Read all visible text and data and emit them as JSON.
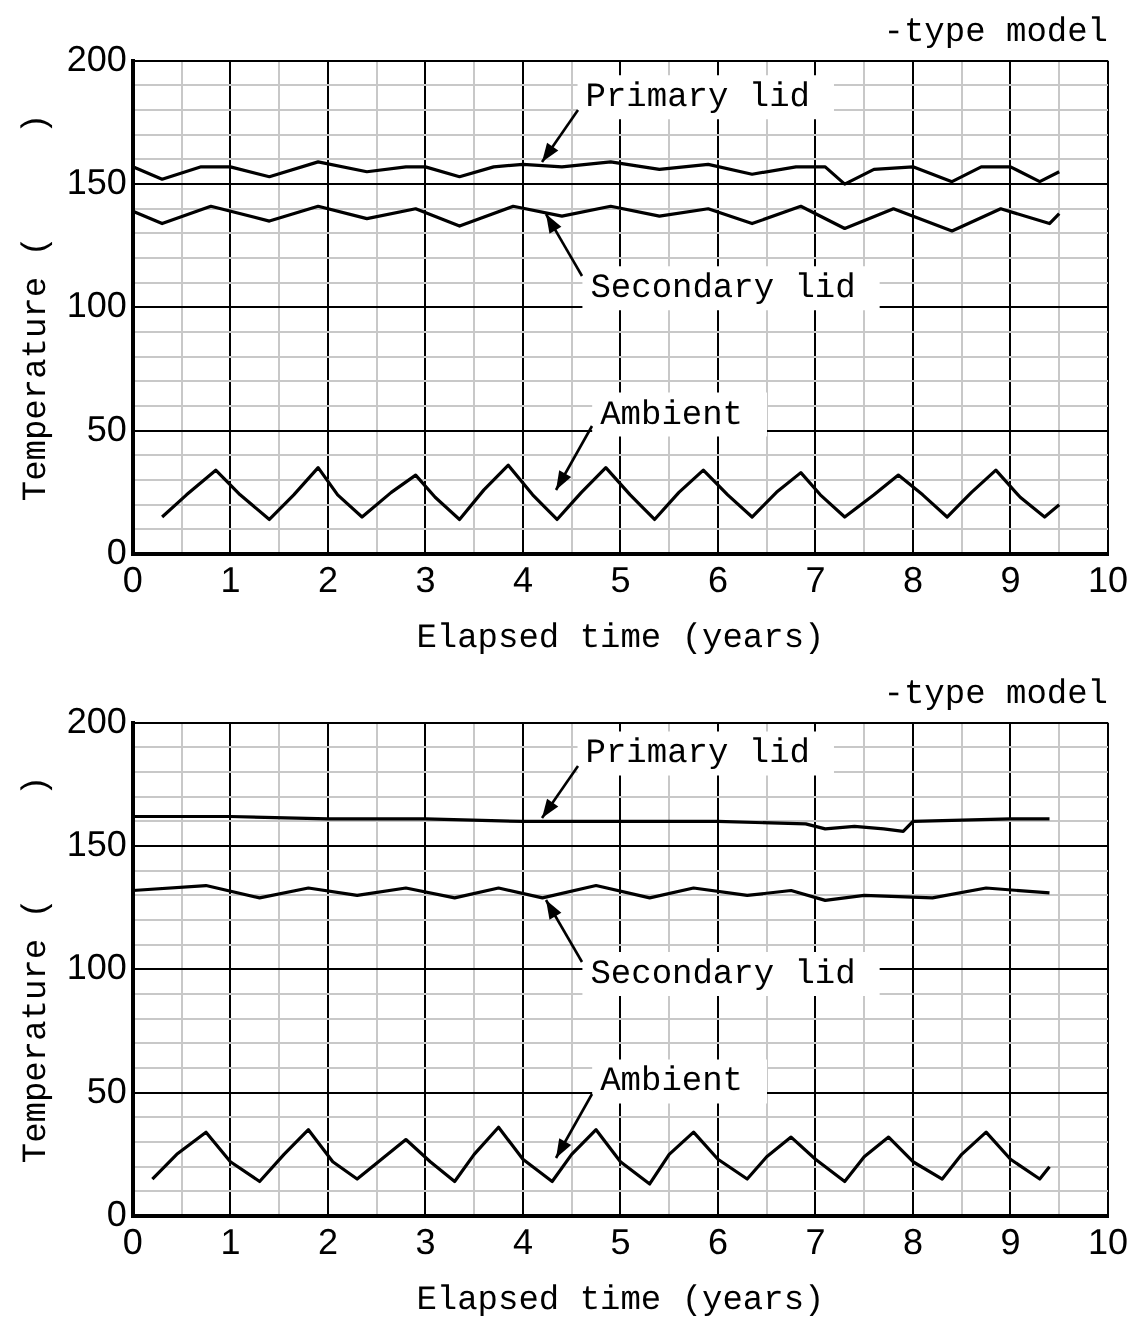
{
  "chart_data": [
    {
      "type": "line",
      "title": "-type model",
      "xlabel": "Elapsed time (years)",
      "ylabel": "Temperature (     )",
      "xlim": [
        0,
        10
      ],
      "ylim": [
        0,
        200
      ],
      "xticks": [
        0,
        {
          "value": 0.5,
          "label": null
        },
        1,
        {
          "value": 1.5,
          "label": null
        },
        2,
        {
          "value": 2.5,
          "label": null
        },
        3,
        {
          "value": 3.5,
          "label": null
        },
        4,
        {
          "value": 4.5,
          "label": null
        },
        5,
        {
          "value": 5.5,
          "label": null
        },
        6,
        {
          "value": 6.5,
          "label": null
        },
        7,
        {
          "value": 7.5,
          "label": null
        },
        8,
        {
          "value": 8.5,
          "label": null
        },
        9,
        {
          "value": 9.5,
          "label": null
        },
        10
      ],
      "yticks": [
        0,
        {
          "value": 10,
          "label": null
        },
        {
          "value": 20,
          "label": null
        },
        {
          "value": 30,
          "label": null
        },
        {
          "value": 40,
          "label": null
        },
        50,
        {
          "value": 60,
          "label": null
        },
        {
          "value": 70,
          "label": null
        },
        {
          "value": 80,
          "label": null
        },
        {
          "value": 90,
          "label": null
        },
        100,
        {
          "value": 110,
          "label": null
        },
        {
          "value": 120,
          "label": null
        },
        {
          "value": 130,
          "label": null
        },
        {
          "value": 140,
          "label": null
        },
        150,
        {
          "value": 160,
          "label": null
        },
        {
          "value": 170,
          "label": null
        },
        {
          "value": 180,
          "label": null
        },
        {
          "value": 190,
          "label": null
        },
        200
      ],
      "grid": true,
      "series": [
        {
          "name": "Primary lid",
          "color": "#000000",
          "x": [
            0,
            0.3,
            0.7,
            1.0,
            1.4,
            1.9,
            2.4,
            2.8,
            3.0,
            3.35,
            3.7,
            4.0,
            4.4,
            4.9,
            5.4,
            5.9,
            6.35,
            6.8,
            7.1,
            7.3,
            7.6,
            8.0,
            8.4,
            8.7,
            9.0,
            9.3,
            9.5
          ],
          "values": [
            157,
            152,
            157,
            157,
            153,
            159,
            155,
            157,
            157,
            153,
            157,
            158,
            157,
            159,
            156,
            158,
            154,
            157,
            157,
            150,
            156,
            157,
            151,
            157,
            157,
            151,
            155
          ]
        },
        {
          "name": "Secondary lid",
          "color": "#000000",
          "x": [
            0,
            0.3,
            0.8,
            1.4,
            1.9,
            2.4,
            2.9,
            3.35,
            3.9,
            4.4,
            4.9,
            5.4,
            5.9,
            6.35,
            6.85,
            7.3,
            7.8,
            8.4,
            8.9,
            9.4,
            9.5
          ],
          "values": [
            139,
            134,
            141,
            135,
            141,
            136,
            140,
            133,
            141,
            137,
            141,
            137,
            140,
            134,
            141,
            132,
            140,
            131,
            140,
            134,
            138
          ]
        },
        {
          "name": "Ambient",
          "color": "#000000",
          "x": [
            0.3,
            0.55,
            0.85,
            1.1,
            1.4,
            1.65,
            1.9,
            2.1,
            2.35,
            2.65,
            2.9,
            3.1,
            3.35,
            3.6,
            3.85,
            4.1,
            4.35,
            4.6,
            4.85,
            5.1,
            5.35,
            5.6,
            5.85,
            6.1,
            6.35,
            6.6,
            6.85,
            7.05,
            7.3,
            7.6,
            7.85,
            8.1,
            8.35,
            8.6,
            8.85,
            9.1,
            9.35,
            9.5
          ],
          "values": [
            15,
            24,
            34,
            24,
            14,
            24,
            35,
            24,
            15,
            25,
            32,
            23,
            14,
            26,
            36,
            24,
            14,
            25,
            35,
            24,
            14,
            25,
            34,
            24,
            15,
            25,
            33,
            24,
            15,
            24,
            32,
            24,
            15,
            25,
            34,
            23,
            15,
            20
          ]
        }
      ]
    },
    {
      "type": "line",
      "title": "-type model",
      "xlabel": "Elapsed time (years)",
      "ylabel": "Temperature (     )",
      "xlim": [
        0,
        10
      ],
      "ylim": [
        0,
        200
      ],
      "xticks": [
        0,
        {
          "value": 0.5,
          "label": null
        },
        1,
        {
          "value": 1.5,
          "label": null
        },
        2,
        {
          "value": 2.5,
          "label": null
        },
        3,
        {
          "value": 3.5,
          "label": null
        },
        4,
        {
          "value": 4.5,
          "label": null
        },
        5,
        {
          "value": 5.5,
          "label": null
        },
        6,
        {
          "value": 6.5,
          "label": null
        },
        7,
        {
          "value": 7.5,
          "label": null
        },
        8,
        {
          "value": 8.5,
          "label": null
        },
        9,
        {
          "value": 9.5,
          "label": null
        },
        10
      ],
      "yticks": [
        0,
        {
          "value": 10,
          "label": null
        },
        {
          "value": 20,
          "label": null
        },
        {
          "value": 30,
          "label": null
        },
        {
          "value": 40,
          "label": null
        },
        50,
        {
          "value": 60,
          "label": null
        },
        {
          "value": 70,
          "label": null
        },
        {
          "value": 80,
          "label": null
        },
        {
          "value": 90,
          "label": null
        },
        100,
        {
          "value": 110,
          "label": null
        },
        {
          "value": 120,
          "label": null
        },
        {
          "value": 130,
          "label": null
        },
        {
          "value": 140,
          "label": null
        },
        150,
        {
          "value": 160,
          "label": null
        },
        {
          "value": 170,
          "label": null
        },
        {
          "value": 180,
          "label": null
        },
        {
          "value": 190,
          "label": null
        },
        200
      ],
      "grid": true,
      "series": [
        {
          "name": "Primary lid",
          "color": "#000000",
          "x": [
            0,
            1.0,
            2.0,
            3.0,
            4.0,
            5.0,
            6.0,
            6.9,
            7.1,
            7.4,
            7.7,
            7.9,
            8.0,
            9.0,
            9.4
          ],
          "values": [
            162,
            162,
            161,
            161,
            160,
            160,
            160,
            159,
            157,
            158,
            157,
            156,
            160,
            161,
            161
          ]
        },
        {
          "name": "Secondary lid",
          "color": "#000000",
          "x": [
            0,
            0.75,
            1.3,
            1.8,
            2.3,
            2.8,
            3.3,
            3.75,
            4.2,
            4.75,
            5.3,
            5.75,
            6.3,
            6.75,
            7.1,
            7.5,
            8.2,
            8.75,
            9.4
          ],
          "values": [
            132,
            134,
            129,
            133,
            130,
            133,
            129,
            133,
            129,
            134,
            129,
            133,
            130,
            132,
            128,
            130,
            129,
            133,
            131
          ]
        },
        {
          "name": "Ambient",
          "color": "#000000",
          "x": [
            0.2,
            0.45,
            0.75,
            1.0,
            1.3,
            1.55,
            1.8,
            2.05,
            2.3,
            2.55,
            2.8,
            3.05,
            3.3,
            3.5,
            3.75,
            4.0,
            4.3,
            4.5,
            4.75,
            5.0,
            5.3,
            5.5,
            5.75,
            6.0,
            6.3,
            6.5,
            6.75,
            7.0,
            7.3,
            7.5,
            7.75,
            8.0,
            8.3,
            8.5,
            8.75,
            9.0,
            9.3,
            9.4
          ],
          "values": [
            15,
            25,
            34,
            22,
            14,
            25,
            35,
            22,
            15,
            23,
            31,
            22,
            14,
            25,
            36,
            23,
            14,
            25,
            35,
            22,
            13,
            25,
            34,
            23,
            15,
            24,
            32,
            23,
            14,
            24,
            32,
            22,
            15,
            25,
            34,
            23,
            15,
            20
          ]
        }
      ]
    }
  ]
}
